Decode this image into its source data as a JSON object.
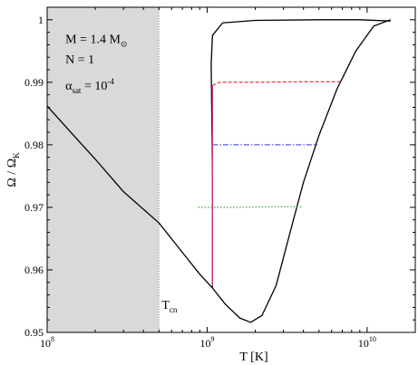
{
  "chart_data": {
    "type": "line",
    "title": "",
    "xlabel": "T [K]",
    "ylabel": "Ω / Ω",
    "ylabel_sub": "K",
    "x_scale": "log",
    "xlim": [
      100000000,
      20000000000
    ],
    "ylim": [
      0.95,
      1.002
    ],
    "x_ticks": [
      {
        "value": 100000000,
        "base": "10",
        "exp": "8"
      },
      {
        "value": 1000000000,
        "base": "10",
        "exp": "9"
      },
      {
        "value": 10000000000,
        "base": "10",
        "exp": "10"
      }
    ],
    "y_ticks": [
      {
        "value": 0.95,
        "label": "0.95"
      },
      {
        "value": 0.96,
        "label": "0.96"
      },
      {
        "value": 0.97,
        "label": "0.97"
      },
      {
        "value": 0.98,
        "label": "0.98"
      },
      {
        "value": 0.99,
        "label": "0.99"
      },
      {
        "value": 1.0,
        "label": "1"
      }
    ],
    "shaded_region": {
      "x_from": 100000000,
      "x_to": 500000000,
      "color": "#d9d9d9"
    },
    "series": [
      {
        "style": "solid",
        "color": "#000000",
        "points": [
          [
            100000000,
            0.9862
          ],
          [
            150000000,
            0.9812
          ],
          [
            200000000,
            0.9777
          ],
          [
            300000000,
            0.9725
          ],
          [
            500000000,
            0.9675
          ],
          [
            700000000,
            0.9628
          ],
          [
            900000000,
            0.9593
          ],
          [
            1080000000,
            0.9571
          ],
          [
            1300000000,
            0.9545
          ],
          [
            1600000000,
            0.9523
          ],
          [
            1870000000,
            0.9516
          ],
          [
            2200000000,
            0.9527
          ],
          [
            2700000000,
            0.9575
          ],
          [
            3300000000,
            0.966
          ],
          [
            4000000000,
            0.974
          ],
          [
            5000000000,
            0.9815
          ],
          [
            6500000000,
            0.989
          ],
          [
            8500000000,
            0.995
          ],
          [
            11000000000,
            0.999
          ],
          [
            14000000000,
            1.0
          ]
        ]
      },
      {
        "style": "solid",
        "color": "#000000",
        "points": [
          [
            1080000000,
            0.9572
          ],
          [
            1080000000,
            0.975
          ],
          [
            1060000000,
            0.993
          ],
          [
            1080000000,
            0.9975
          ],
          [
            1250000000,
            0.9995
          ],
          [
            2000000000,
            0.9999
          ],
          [
            5000000000,
            1.0
          ],
          [
            9000000000,
            1.0
          ],
          [
            14000000000,
            0.9998
          ]
        ]
      },
      {
        "style": "dashed",
        "color": "#e8202a",
        "points": [
          [
            1080000000,
            0.9895
          ],
          [
            1200000000,
            0.99
          ],
          [
            2000000000,
            0.99
          ],
          [
            4000000000,
            0.9901
          ],
          [
            6800000000,
            0.9901
          ]
        ]
      },
      {
        "style": "dashdot",
        "color": "#3434e0",
        "points": [
          [
            1080000000,
            0.98
          ],
          [
            2000000000,
            0.98
          ],
          [
            4900000000,
            0.98
          ]
        ]
      },
      {
        "style": "dotted",
        "color": "#1e9e1e",
        "points": [
          [
            880000000,
            0.97
          ],
          [
            1500000000,
            0.97
          ],
          [
            2500000000,
            0.9701
          ],
          [
            3900000000,
            0.9701
          ]
        ]
      },
      {
        "style": "solid",
        "color": "#c83c8c",
        "points": [
          [
            1080000000,
            0.9574
          ],
          [
            1080000000,
            0.9895
          ]
        ]
      }
    ],
    "annotations": [
      {
        "id": "mass",
        "text": "M = 1.4 M",
        "sub": "⊙",
        "x": 130000000,
        "y": 0.9963
      },
      {
        "id": "n",
        "text": "N = 1",
        "x": 130000000,
        "y": 0.993
      },
      {
        "id": "alpha",
        "text": "α",
        "sub": "sat",
        "rest": " = 10",
        "sup": "-4",
        "x": 130000000,
        "y": 0.9888
      },
      {
        "id": "tcn",
        "text": "T",
        "sub": "cn",
        "x": 520000000,
        "y": 0.9538
      }
    ]
  }
}
